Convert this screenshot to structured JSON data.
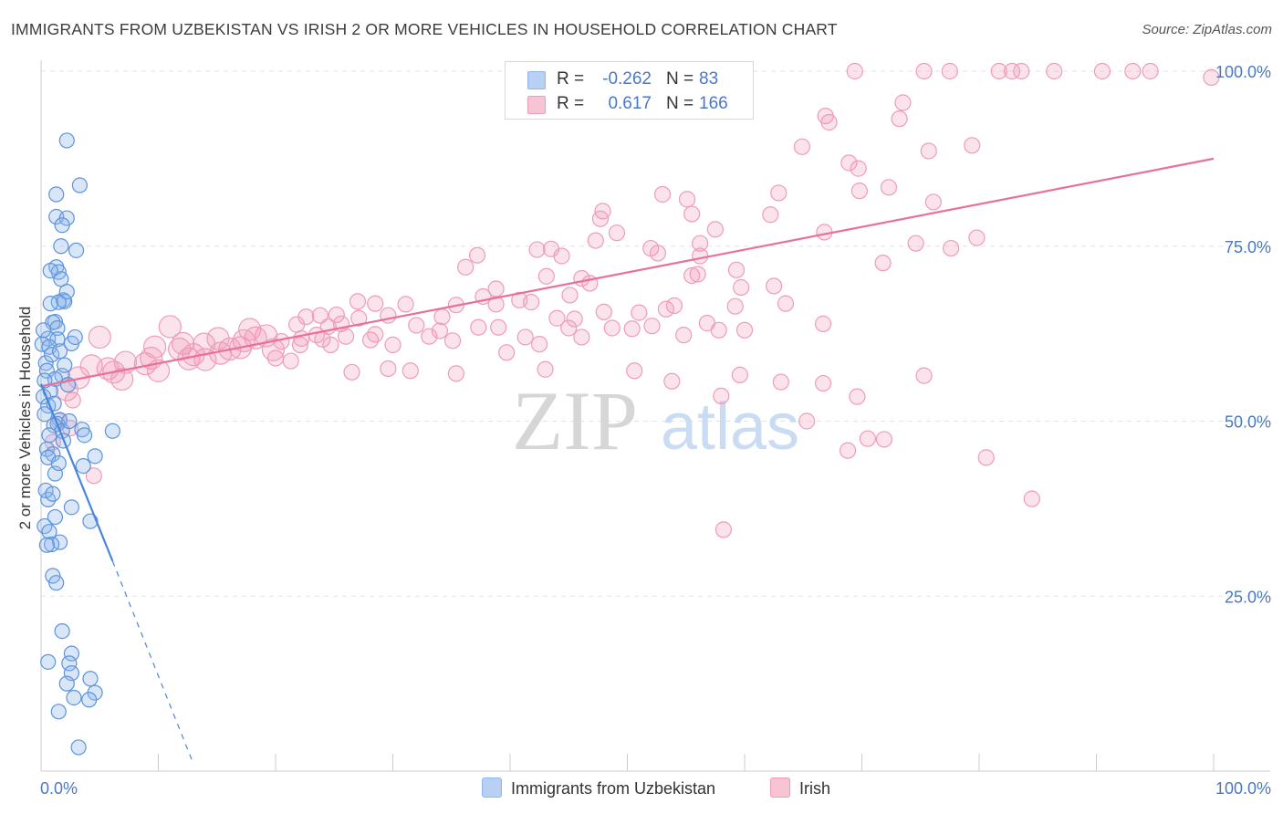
{
  "title": "IMMIGRANTS FROM UZBEKISTAN VS IRISH 2 OR MORE VEHICLES IN HOUSEHOLD CORRELATION CHART",
  "source": "Source: ZipAtlas.com",
  "watermark": {
    "zip": "ZIP",
    "atlas": "atlas"
  },
  "legend": {
    "r_label": "R =",
    "n_label": "N =",
    "series": [
      {
        "r": "-0.262",
        "n": "83",
        "color": "#8fb6ea",
        "fill": "#b8d0f3"
      },
      {
        "r": "0.617",
        "n": "166",
        "color": "#ef9cb7",
        "fill": "#f7c4d4"
      }
    ]
  },
  "bottom_legend": [
    "Immigrants from Uzbekistan",
    "Irish"
  ],
  "chart_data": {
    "type": "scatter",
    "title": "IMMIGRANTS FROM UZBEKISTAN VS IRISH 2 OR MORE VEHICLES IN HOUSEHOLD CORRELATION CHART",
    "xlabel": "",
    "ylabel": "2 or more Vehicles in Household",
    "xlim": [
      0,
      100
    ],
    "ylim": [
      0,
      100
    ],
    "x_tick_labels": [
      "0.0%",
      "100.0%"
    ],
    "y_tick_labels": [
      "25.0%",
      "50.0%",
      "75.0%",
      "100.0%"
    ],
    "y_ticks": [
      25,
      50,
      75,
      100
    ],
    "grid": true,
    "legend_position": "top-center",
    "series": [
      {
        "name": "Immigrants from Uzbekistan",
        "color": "#4a86d8",
        "point_color": "#8fb6ea",
        "trend": {
          "x0": 0,
          "y0": 55.3,
          "x1": 6.1,
          "y1": 30.0,
          "dash_to_x": 13.0,
          "dash_to_y": 1.0
        },
        "points": [
          [
            2.2,
            90.1
          ],
          [
            3.3,
            83.7
          ],
          [
            1.3,
            82.4
          ],
          [
            1.3,
            79.2
          ],
          [
            2.2,
            79.0
          ],
          [
            1.8,
            78.0
          ],
          [
            3.0,
            74.4
          ],
          [
            1.3,
            72.0
          ],
          [
            1.5,
            71.3
          ],
          [
            1.7,
            70.3
          ],
          [
            1.9,
            67.3
          ],
          [
            2.0,
            67.1
          ],
          [
            1.5,
            67.0
          ],
          [
            0.8,
            66.8
          ],
          [
            1.2,
            64.2
          ],
          [
            1.0,
            64.1
          ],
          [
            1.4,
            63.3
          ],
          [
            0.6,
            61.8
          ],
          [
            1.4,
            61.7
          ],
          [
            2.6,
            61.1
          ],
          [
            0.1,
            61.0
          ],
          [
            0.7,
            60.6
          ],
          [
            0.4,
            58.3
          ],
          [
            0.5,
            57.2
          ],
          [
            1.8,
            56.5
          ],
          [
            1.2,
            56.0
          ],
          [
            2.3,
            55.2
          ],
          [
            0.8,
            54.3
          ],
          [
            0.2,
            53.5
          ],
          [
            0.6,
            52.2
          ],
          [
            0.3,
            51.0
          ],
          [
            1.6,
            50.2
          ],
          [
            1.4,
            49.6
          ],
          [
            1.1,
            49.4
          ],
          [
            1.8,
            48.6
          ],
          [
            3.5,
            48.8
          ],
          [
            6.1,
            48.6
          ],
          [
            3.7,
            48.0
          ],
          [
            0.5,
            46.0
          ],
          [
            1.0,
            45.3
          ],
          [
            0.6,
            44.8
          ],
          [
            4.6,
            45.0
          ],
          [
            3.6,
            43.6
          ],
          [
            1.2,
            42.5
          ],
          [
            0.6,
            38.8
          ],
          [
            2.6,
            37.7
          ],
          [
            1.2,
            36.3
          ],
          [
            4.2,
            35.7
          ],
          [
            0.3,
            35.0
          ],
          [
            0.7,
            34.2
          ],
          [
            1.6,
            32.7
          ],
          [
            0.9,
            32.4
          ],
          [
            0.5,
            32.3
          ],
          [
            1.0,
            27.9
          ],
          [
            1.3,
            26.9
          ],
          [
            1.8,
            20.0
          ],
          [
            0.6,
            15.6
          ],
          [
            2.6,
            16.8
          ],
          [
            2.4,
            15.4
          ],
          [
            2.6,
            14.0
          ],
          [
            4.2,
            13.2
          ],
          [
            2.2,
            12.5
          ],
          [
            4.6,
            11.2
          ],
          [
            2.8,
            10.5
          ],
          [
            4.1,
            10.2
          ],
          [
            1.5,
            8.5
          ],
          [
            3.2,
            3.4
          ],
          [
            0.4,
            40.1
          ],
          [
            1.0,
            39.6
          ],
          [
            1.9,
            47.2
          ],
          [
            2.4,
            50.0
          ],
          [
            0.9,
            59.5
          ],
          [
            1.6,
            60.0
          ],
          [
            0.3,
            55.8
          ],
          [
            1.1,
            52.5
          ],
          [
            2.0,
            58.0
          ],
          [
            0.7,
            48.0
          ],
          [
            1.5,
            44.0
          ],
          [
            0.2,
            63.0
          ],
          [
            2.2,
            68.5
          ],
          [
            0.8,
            71.5
          ],
          [
            1.7,
            75.0
          ],
          [
            2.9,
            62.0
          ]
        ]
      },
      {
        "name": "Irish",
        "color": "#e8709a",
        "point_color": "#ef9cb7",
        "trend": {
          "x0": 0,
          "y0": 55.0,
          "x1": 100,
          "y1": 87.5
        },
        "points": [
          [
            69.4,
            100
          ],
          [
            75.3,
            100
          ],
          [
            77.5,
            100
          ],
          [
            81.7,
            100
          ],
          [
            82.8,
            100
          ],
          [
            83.6,
            100
          ],
          [
            86.4,
            100
          ],
          [
            90.5,
            100
          ],
          [
            93.1,
            100
          ],
          [
            94.6,
            100
          ],
          [
            99.8,
            99.1
          ],
          [
            73.5,
            95.5
          ],
          [
            66.9,
            93.6
          ],
          [
            73.2,
            93.2
          ],
          [
            67.2,
            92.7
          ],
          [
            64.9,
            89.2
          ],
          [
            79.4,
            89.4
          ],
          [
            75.7,
            88.6
          ],
          [
            68.9,
            86.9
          ],
          [
            69.7,
            86.1
          ],
          [
            53.0,
            82.4
          ],
          [
            72.3,
            83.4
          ],
          [
            69.8,
            82.9
          ],
          [
            62.9,
            82.6
          ],
          [
            76.1,
            81.3
          ],
          [
            55.1,
            81.7
          ],
          [
            47.9,
            80.0
          ],
          [
            55.5,
            79.6
          ],
          [
            62.2,
            79.5
          ],
          [
            47.7,
            78.9
          ],
          [
            57.5,
            77.4
          ],
          [
            49.1,
            76.9
          ],
          [
            66.8,
            77.0
          ],
          [
            47.3,
            75.8
          ],
          [
            56.2,
            75.4
          ],
          [
            42.3,
            74.5
          ],
          [
            43.5,
            74.6
          ],
          [
            52.0,
            74.7
          ],
          [
            37.2,
            73.7
          ],
          [
            44.4,
            73.6
          ],
          [
            52.6,
            74.0
          ],
          [
            56.2,
            73.6
          ],
          [
            79.8,
            76.2
          ],
          [
            74.6,
            75.4
          ],
          [
            77.6,
            74.7
          ],
          [
            56.0,
            71.0
          ],
          [
            71.8,
            72.6
          ],
          [
            59.3,
            71.6
          ],
          [
            36.2,
            72.0
          ],
          [
            43.1,
            70.7
          ],
          [
            55.5,
            70.8
          ],
          [
            46.1,
            70.4
          ],
          [
            38.8,
            68.9
          ],
          [
            59.7,
            69.1
          ],
          [
            46.8,
            69.7
          ],
          [
            62.5,
            69.3
          ],
          [
            45.1,
            68.0
          ],
          [
            37.7,
            67.8
          ],
          [
            27.0,
            67.1
          ],
          [
            41.8,
            67.0
          ],
          [
            40.8,
            67.3
          ],
          [
            63.5,
            66.8
          ],
          [
            59.2,
            66.4
          ],
          [
            28.5,
            66.8
          ],
          [
            31.1,
            66.7
          ],
          [
            35.4,
            66.6
          ],
          [
            38.8,
            66.7
          ],
          [
            53.3,
            66.0
          ],
          [
            25.2,
            65.2
          ],
          [
            23.8,
            65.1
          ],
          [
            29.6,
            65.1
          ],
          [
            34.2,
            64.9
          ],
          [
            22.6,
            64.9
          ],
          [
            27.1,
            64.7
          ],
          [
            44.0,
            64.7
          ],
          [
            45.5,
            64.6
          ],
          [
            56.8,
            64.0
          ],
          [
            66.7,
            63.9
          ],
          [
            25.6,
            63.9
          ],
          [
            32.0,
            63.7
          ],
          [
            37.3,
            63.4
          ],
          [
            21.8,
            63.8
          ],
          [
            24.5,
            63.5
          ],
          [
            48.7,
            63.3
          ],
          [
            52.1,
            63.6
          ],
          [
            50.4,
            63.2
          ],
          [
            60.0,
            63.0
          ],
          [
            57.8,
            63.0
          ],
          [
            17.8,
            63.1
          ],
          [
            23.5,
            62.3
          ],
          [
            28.5,
            62.4
          ],
          [
            41.3,
            62.0
          ],
          [
            19.2,
            62.2
          ],
          [
            33.1,
            62.1
          ],
          [
            46.1,
            62.0
          ],
          [
            54.8,
            62.3
          ],
          [
            18.3,
            61.9
          ],
          [
            22.2,
            61.8
          ],
          [
            28.1,
            61.6
          ],
          [
            15.1,
            61.8
          ],
          [
            17.3,
            61.5
          ],
          [
            20.5,
            61.4
          ],
          [
            35.1,
            61.5
          ],
          [
            12.1,
            61.1
          ],
          [
            13.9,
            61.0
          ],
          [
            22.1,
            60.9
          ],
          [
            24.7,
            60.9
          ],
          [
            9.7,
            60.6
          ],
          [
            11.8,
            60.3
          ],
          [
            16.1,
            60.3
          ],
          [
            19.8,
            60.2
          ],
          [
            15.3,
            59.7
          ],
          [
            39.7,
            59.8
          ],
          [
            9.4,
            59.0
          ],
          [
            12.6,
            58.9
          ],
          [
            14.0,
            58.8
          ],
          [
            21.3,
            58.6
          ],
          [
            7.2,
            58.4
          ],
          [
            8.9,
            58.2
          ],
          [
            4.3,
            57.9
          ],
          [
            5.7,
            57.5
          ],
          [
            10.0,
            57.2
          ],
          [
            26.5,
            57.0
          ],
          [
            29.6,
            57.5
          ],
          [
            31.5,
            57.2
          ],
          [
            35.4,
            56.8
          ],
          [
            43.0,
            57.4
          ],
          [
            50.6,
            57.2
          ],
          [
            59.6,
            56.6
          ],
          [
            75.3,
            56.5
          ],
          [
            3.2,
            56.2
          ],
          [
            6.9,
            56.0
          ],
          [
            53.8,
            55.7
          ],
          [
            63.1,
            55.6
          ],
          [
            66.7,
            55.4
          ],
          [
            58.0,
            53.6
          ],
          [
            69.6,
            53.5
          ],
          [
            2.2,
            54.5
          ],
          [
            65.3,
            50.0
          ],
          [
            70.5,
            47.5
          ],
          [
            68.8,
            45.8
          ],
          [
            71.9,
            47.4
          ],
          [
            80.6,
            44.8
          ],
          [
            84.5,
            38.9
          ],
          [
            58.2,
            34.5
          ],
          [
            1.5,
            50.0
          ],
          [
            2.5,
            49.0
          ],
          [
            4.5,
            42.2
          ],
          [
            1.0,
            47.0
          ],
          [
            2.7,
            53.0
          ],
          [
            5.0,
            62.0
          ],
          [
            6.2,
            57.0
          ],
          [
            11.0,
            63.5
          ],
          [
            13.0,
            59.5
          ],
          [
            17.0,
            60.5
          ],
          [
            20.0,
            59.0
          ],
          [
            24.0,
            61.7
          ],
          [
            26.0,
            62.1
          ],
          [
            30.0,
            60.9
          ],
          [
            34.0,
            62.9
          ],
          [
            39.0,
            63.4
          ],
          [
            42.5,
            61.0
          ],
          [
            45.0,
            63.3
          ],
          [
            48.0,
            65.6
          ],
          [
            51.0,
            65.5
          ],
          [
            54.0,
            66.5
          ]
        ]
      }
    ]
  }
}
